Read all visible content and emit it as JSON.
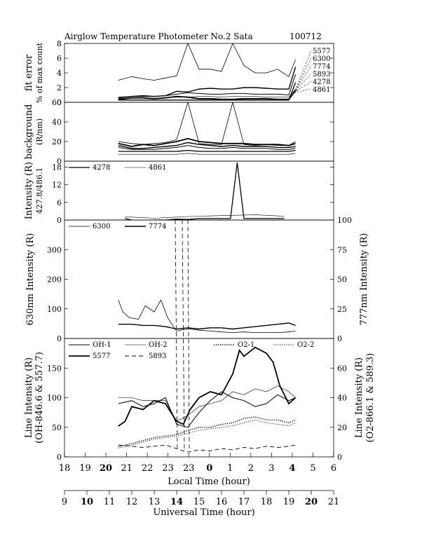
{
  "header": {
    "title": "Airglow Temperature Photometer No.2  Sata",
    "date_code": "100712"
  },
  "chart_data": [
    {
      "type": "line",
      "panel": "fit-error",
      "ylabel": [
        "fit error",
        "% of max count"
      ],
      "ylim": [
        0,
        8
      ],
      "yticks": [
        "0",
        "2",
        "4",
        "6",
        "8"
      ],
      "right_labels": [
        "5577",
        "6300",
        "7774",
        "5893",
        "4278",
        "4861"
      ],
      "series": [
        {
          "name": "5577",
          "x": [
            20.4,
            21,
            21.5,
            22,
            22.5,
            23,
            23.5,
            0,
            0.5,
            1,
            1.5,
            2,
            2.5,
            3,
            3.5,
            4,
            4.3
          ],
          "values": [
            0.4,
            0.6,
            0.6,
            0.5,
            0.6,
            0.8,
            0.7,
            0.5,
            0.5,
            0.4,
            0.4,
            0.5,
            0.5,
            0.5,
            0.4,
            0.4,
            1.6
          ]
        },
        {
          "name": "6300",
          "x": [
            20.4,
            21,
            21.5,
            22,
            22.5,
            23,
            23.5,
            0,
            0.5,
            1,
            1.5,
            2,
            2.5,
            3,
            3.5,
            4,
            4.3
          ],
          "values": [
            3.0,
            3.5,
            3.2,
            3.0,
            3.3,
            3.6,
            8.0,
            4.5,
            4.5,
            4.2,
            8.0,
            5.0,
            4.0,
            4.0,
            4.5,
            3.5,
            5.8
          ]
        },
        {
          "name": "7774",
          "x": [
            20.4,
            21,
            21.5,
            22,
            22.5,
            23,
            23.5,
            0,
            0.5,
            1,
            1.5,
            2,
            2.5,
            3,
            3.5,
            4,
            4.3
          ],
          "values": [
            0.6,
            0.8,
            0.9,
            0.8,
            0.9,
            1.5,
            1.4,
            1.8,
            1.9,
            1.8,
            1.8,
            2.0,
            2.0,
            1.9,
            1.8,
            1.8,
            4.8
          ]
        },
        {
          "name": "5893",
          "x": [
            20.4,
            21,
            21.5,
            22,
            22.5,
            23,
            23.5,
            0,
            0.5,
            1,
            1.5,
            2,
            2.5,
            3,
            3.5,
            4,
            4.3
          ],
          "values": [
            0.7,
            0.8,
            0.8,
            0.8,
            0.9,
            1.1,
            1.3,
            1.2,
            1.1,
            1.1,
            1.2,
            1.2,
            1.1,
            1.1,
            1.1,
            1.0,
            3.8
          ]
        },
        {
          "name": "4278",
          "x": [
            20.4,
            21,
            21.5,
            22,
            22.5,
            23,
            23.5,
            0,
            0.5,
            1,
            1.5,
            2,
            2.5,
            3,
            3.5,
            4,
            4.3
          ],
          "values": [
            0.3,
            0.3,
            0.3,
            0.3,
            0.3,
            0.3,
            0.3,
            0.3,
            0.3,
            0.3,
            0.3,
            0.3,
            0.3,
            0.3,
            0.3,
            0.3,
            2.7
          ]
        },
        {
          "name": "4861",
          "x": [
            20.4,
            21,
            21.5,
            22,
            22.5,
            23,
            23.5,
            0,
            0.5,
            1,
            1.5,
            2,
            2.5,
            3,
            3.5,
            4,
            4.3
          ],
          "values": [
            0.5,
            0.6,
            0.6,
            0.5,
            0.6,
            0.7,
            0.7,
            0.8,
            0.8,
            0.7,
            0.8,
            0.8,
            0.8,
            0.7,
            0.7,
            0.7,
            1.8
          ]
        }
      ]
    },
    {
      "type": "line",
      "panel": "background",
      "ylabel": [
        "background",
        "(R/nm)"
      ],
      "ylim": [
        0,
        60
      ],
      "yticks": [
        "0",
        "20",
        "40",
        "60"
      ],
      "series": [
        {
          "name": "5577",
          "x": [
            20.4,
            21,
            21.5,
            22,
            22.5,
            23,
            23.5,
            0,
            0.5,
            1,
            1.5,
            2,
            2.5,
            3,
            3.5,
            4,
            4.3
          ],
          "values": [
            18,
            15,
            17,
            16,
            18,
            20,
            23,
            20,
            19,
            18,
            18,
            18,
            17,
            17,
            17,
            16,
            18
          ]
        },
        {
          "name": "6300",
          "x": [
            20.4,
            21,
            21.5,
            22,
            22.5,
            23,
            23.5,
            0,
            0.5,
            1,
            1.5,
            2,
            2.5,
            3,
            3.5,
            4,
            4.3
          ],
          "values": [
            20,
            18,
            17,
            18,
            19,
            22,
            60,
            18,
            17,
            17,
            60,
            17,
            16,
            17,
            16,
            16,
            20
          ]
        },
        {
          "name": "7774",
          "x": [
            20.4,
            21,
            21.5,
            22,
            22.5,
            23,
            23.5,
            0,
            0.5,
            1,
            1.5,
            2,
            2.5,
            3,
            3.5,
            4,
            4.3
          ],
          "values": [
            16,
            13,
            13,
            14,
            15,
            16,
            19,
            17,
            16,
            15,
            16,
            15,
            15,
            15,
            14,
            14,
            15
          ]
        },
        {
          "name": "5893",
          "x": [
            20.4,
            21,
            21.5,
            22,
            22.5,
            23,
            23.5,
            0,
            0.5,
            1,
            1.5,
            2,
            2.5,
            3,
            3.5,
            4,
            4.3
          ],
          "values": [
            14,
            12,
            12,
            12,
            13,
            14,
            16,
            14,
            13,
            13,
            14,
            13,
            13,
            13,
            12,
            12,
            13
          ]
        },
        {
          "name": "4278",
          "x": [
            20.4,
            21,
            21.5,
            22,
            22.5,
            23,
            23.5,
            0,
            0.5,
            1,
            1.5,
            2,
            2.5,
            3,
            3.5,
            4,
            4.3
          ],
          "values": [
            10,
            10,
            10,
            10,
            10,
            10,
            11,
            10,
            10,
            10,
            10,
            10,
            10,
            10,
            10,
            10,
            11
          ]
        },
        {
          "name": "4861",
          "x": [
            20.4,
            21,
            21.5,
            22,
            22.5,
            23,
            23.5,
            0,
            0.5,
            1,
            1.5,
            2,
            2.5,
            3,
            3.5,
            4,
            4.3
          ],
          "values": [
            7,
            7,
            7,
            7,
            7,
            7,
            8,
            7,
            7,
            7,
            7,
            7,
            7,
            7,
            7,
            7,
            8
          ]
        }
      ]
    },
    {
      "type": "line",
      "panel": "blue-lines",
      "ylabel": [
        "Intensity (R)",
        "427.8/486.1"
      ],
      "ylim": [
        0,
        20
      ],
      "yticks": [
        "0",
        "6",
        "12",
        "18"
      ],
      "series": [
        {
          "name": "4278",
          "x": [
            20.7,
            21,
            21.5,
            22,
            22.5,
            23,
            23.5,
            0,
            0.5,
            1,
            1.4,
            1.7,
            2.0,
            2.5,
            3,
            3.5,
            3.8
          ],
          "values": [
            0.5,
            0,
            -0.5,
            0,
            0,
            0.3,
            0.2,
            0.5,
            0.5,
            0.5,
            0.5,
            19.5,
            0.5,
            0.5,
            0.5,
            0.5,
            0.5
          ]
        },
        {
          "name": "4861",
          "x": [
            20.7,
            21,
            21.5,
            22,
            22.5,
            23,
            23.5,
            0,
            0.5,
            1,
            1.5,
            2,
            2.5,
            3,
            3.5,
            3.8
          ],
          "values": [
            1.0,
            1.0,
            0.8,
            0.6,
            0.8,
            1.0,
            1.2,
            1.3,
            1.4,
            1.5,
            1.6,
            1.7,
            1.8,
            1.6,
            1.4,
            1.2
          ]
        }
      ]
    },
    {
      "type": "line",
      "panel": "red-lines",
      "ylabel": "630nm Intensity (R)",
      "ylabel_right": "777nm Intensity (R)",
      "ylim": [
        0,
        400
      ],
      "ylim_right": [
        0,
        100
      ],
      "yticks": [
        "0",
        "100",
        "200",
        "300"
      ],
      "yticks_right": [
        "0",
        "25",
        "50",
        "75",
        "100"
      ],
      "series": [
        {
          "name": "6300",
          "x": [
            20.4,
            20.6,
            20.9,
            21.3,
            21.6,
            22.0,
            22.3,
            22.6,
            22.9,
            23.0,
            23.3,
            23.6,
            0,
            0.5,
            1,
            1.5,
            2,
            2.5,
            3,
            3.5,
            4,
            4.3
          ],
          "values": [
            130,
            90,
            70,
            65,
            110,
            90,
            130,
            70,
            35,
            25,
            30,
            32,
            28,
            25,
            22,
            20,
            22,
            20,
            20,
            20,
            22,
            25
          ]
        },
        {
          "name": "7774",
          "x": [
            20.4,
            21,
            21.5,
            22,
            22.5,
            23,
            23.5,
            0,
            0.5,
            1,
            1.5,
            2,
            2.5,
            3,
            3.5,
            4,
            4.3
          ],
          "values": [
            12,
            12,
            11,
            11,
            10,
            8,
            9,
            8,
            9,
            9,
            8,
            9,
            10,
            11,
            12,
            13,
            11
          ]
        }
      ]
    },
    {
      "type": "line",
      "panel": "oh-na",
      "ylabel": [
        "Line Intensity (R)",
        "(OH-846.6 & 557.7)"
      ],
      "ylabel_right": [
        "Line Intensity (R)",
        "(O2-866.1 & 589.3)"
      ],
      "ylim": [
        0,
        200
      ],
      "ylim_right": [
        0,
        80
      ],
      "yticks": [
        "0",
        "50",
        "100",
        "150"
      ],
      "yticks_right": [
        "0",
        "20",
        "40",
        "60"
      ],
      "series": [
        {
          "name": "OH-1",
          "x": [
            20.4,
            21,
            21.5,
            22,
            22.5,
            23,
            23.5,
            0,
            0.5,
            1,
            1.5,
            2,
            2.5,
            3,
            3.5,
            4,
            4.3
          ],
          "values": [
            90,
            95,
            85,
            90,
            100,
            55,
            50,
            75,
            95,
            110,
            100,
            95,
            85,
            90,
            105,
            95,
            100
          ]
        },
        {
          "name": "OH-2",
          "x": [
            20.4,
            21,
            21.5,
            22,
            22.5,
            23,
            23.5,
            0,
            0.5,
            1,
            1.5,
            2,
            2.5,
            3,
            3.5,
            4,
            4.3
          ],
          "values": [
            100,
            100,
            95,
            95,
            95,
            60,
            70,
            85,
            90,
            95,
            110,
            105,
            115,
            110,
            120,
            110,
            100
          ]
        },
        {
          "name": "O2-1",
          "x": [
            20.4,
            21,
            21.5,
            22,
            22.5,
            23,
            23.5,
            0,
            0.5,
            1,
            1.5,
            2,
            2.5,
            3,
            3.5,
            4,
            4.3
          ],
          "values": [
            7,
            9,
            11,
            13,
            14,
            15,
            18,
            20,
            20,
            22,
            23,
            26,
            27,
            25,
            25,
            23,
            25
          ]
        },
        {
          "name": "O2-2",
          "x": [
            20.4,
            21,
            21.5,
            22,
            22.5,
            23,
            23.5,
            0,
            0.5,
            1,
            1.5,
            2,
            2.5,
            3,
            3.5,
            4,
            4.3
          ],
          "values": [
            6,
            8,
            10,
            12,
            13,
            14,
            16,
            18,
            19,
            20,
            21,
            23,
            25,
            23,
            22,
            21,
            23
          ]
        },
        {
          "name": "5577",
          "x": [
            20.4,
            20.7,
            21,
            21.5,
            22,
            22.5,
            23,
            23.3,
            23.6,
            0,
            0.5,
            1,
            1.5,
            1.8,
            2,
            2.5,
            3,
            3.3,
            3.6,
            4,
            4.3
          ],
          "values": [
            52,
            60,
            85,
            80,
            95,
            90,
            60,
            55,
            80,
            100,
            110,
            105,
            140,
            180,
            170,
            185,
            175,
            160,
            120,
            90,
            100
          ]
        },
        {
          "name": "5893",
          "x": [
            20.4,
            21,
            21.5,
            22,
            22.5,
            23,
            23.5,
            0,
            0.5,
            1,
            1.5,
            2,
            2.5,
            3,
            3.5,
            4,
            4.3
          ],
          "values": [
            20,
            18,
            16,
            18,
            20,
            14,
            8,
            12,
            10,
            14,
            12,
            16,
            14,
            18,
            16,
            18,
            20
          ]
        }
      ]
    }
  ],
  "x_axis_local": {
    "label": "Local Time (hour)",
    "ticks": [
      "18",
      "19",
      "20",
      "21",
      "22",
      "23",
      "23",
      "0",
      "1",
      "2",
      "3",
      "4",
      "5",
      "6"
    ]
  },
  "x_axis_ut": {
    "label": "Universal Time (hour)",
    "ticks": [
      "9",
      "10",
      "11",
      "12",
      "13",
      "14",
      "15",
      "16",
      "17",
      "18",
      "19",
      "20",
      "21"
    ]
  }
}
